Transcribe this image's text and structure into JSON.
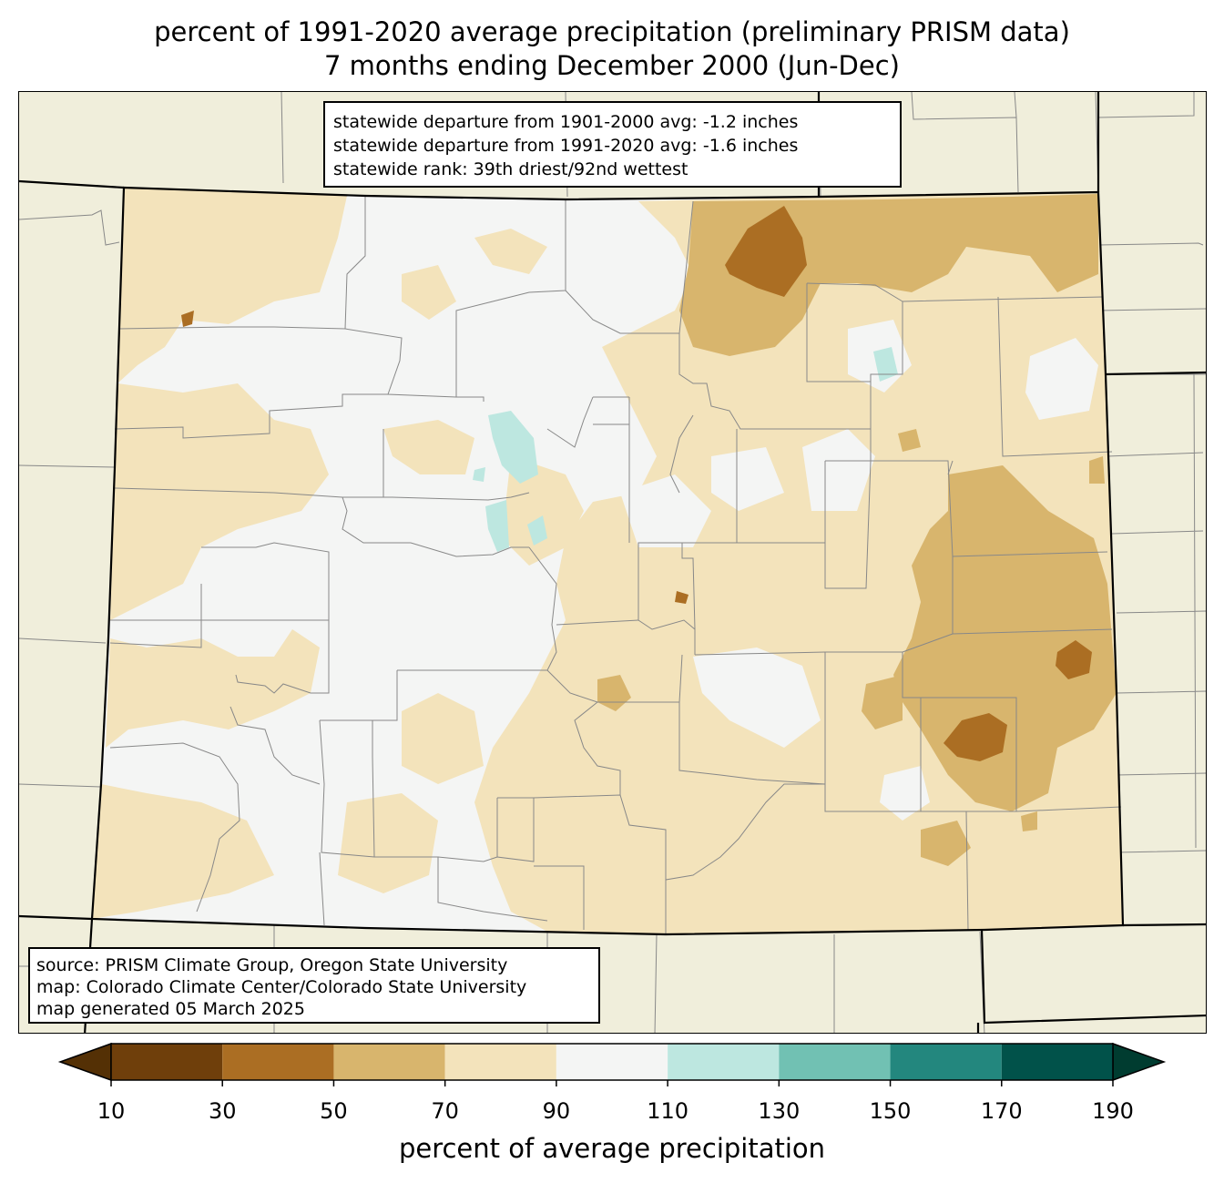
{
  "title": {
    "line1": "percent of 1991-2020 average precipitation (preliminary PRISM data)",
    "line2": "7 months ending December 2000 (Jun-Dec)"
  },
  "stats": {
    "line1": "statewide departure from 1901-2000 avg: -1.2 inches",
    "line2": "statewide departure from 1991-2020 avg: -1.6 inches",
    "line3": "statewide rank: 39th driest/92nd wettest"
  },
  "source": {
    "line1": "source: PRISM Climate Group, Oregon State University",
    "line2": "map: Colorado Climate Center/Colorado State University",
    "line3": "map generated 05 March 2025"
  },
  "colorbar": {
    "label": "percent of average precipitation",
    "ticks": [
      "10",
      "30",
      "50",
      "70",
      "90",
      "110",
      "130",
      "150",
      "170",
      "190"
    ],
    "under_color": "#543005",
    "over_color": "#003c30",
    "bins": [
      {
        "range": "10-30",
        "color": "#6f3f0b"
      },
      {
        "range": "30-50",
        "color": "#ab6e23"
      },
      {
        "range": "50-70",
        "color": "#d8b56d"
      },
      {
        "range": "70-90",
        "color": "#f3e3bb"
      },
      {
        "range": "90-110",
        "color": "#f4f5f4"
      },
      {
        "range": "110-130",
        "color": "#bde7e0"
      },
      {
        "range": "130-150",
        "color": "#71c1b3"
      },
      {
        "range": "150-170",
        "color": "#23877e"
      },
      {
        "range": "170-190",
        "color": "#01524a"
      }
    ]
  },
  "map_colors": {
    "background_land": "#f0eedb",
    "state_border": "#000000",
    "county_border": "#888888"
  }
}
